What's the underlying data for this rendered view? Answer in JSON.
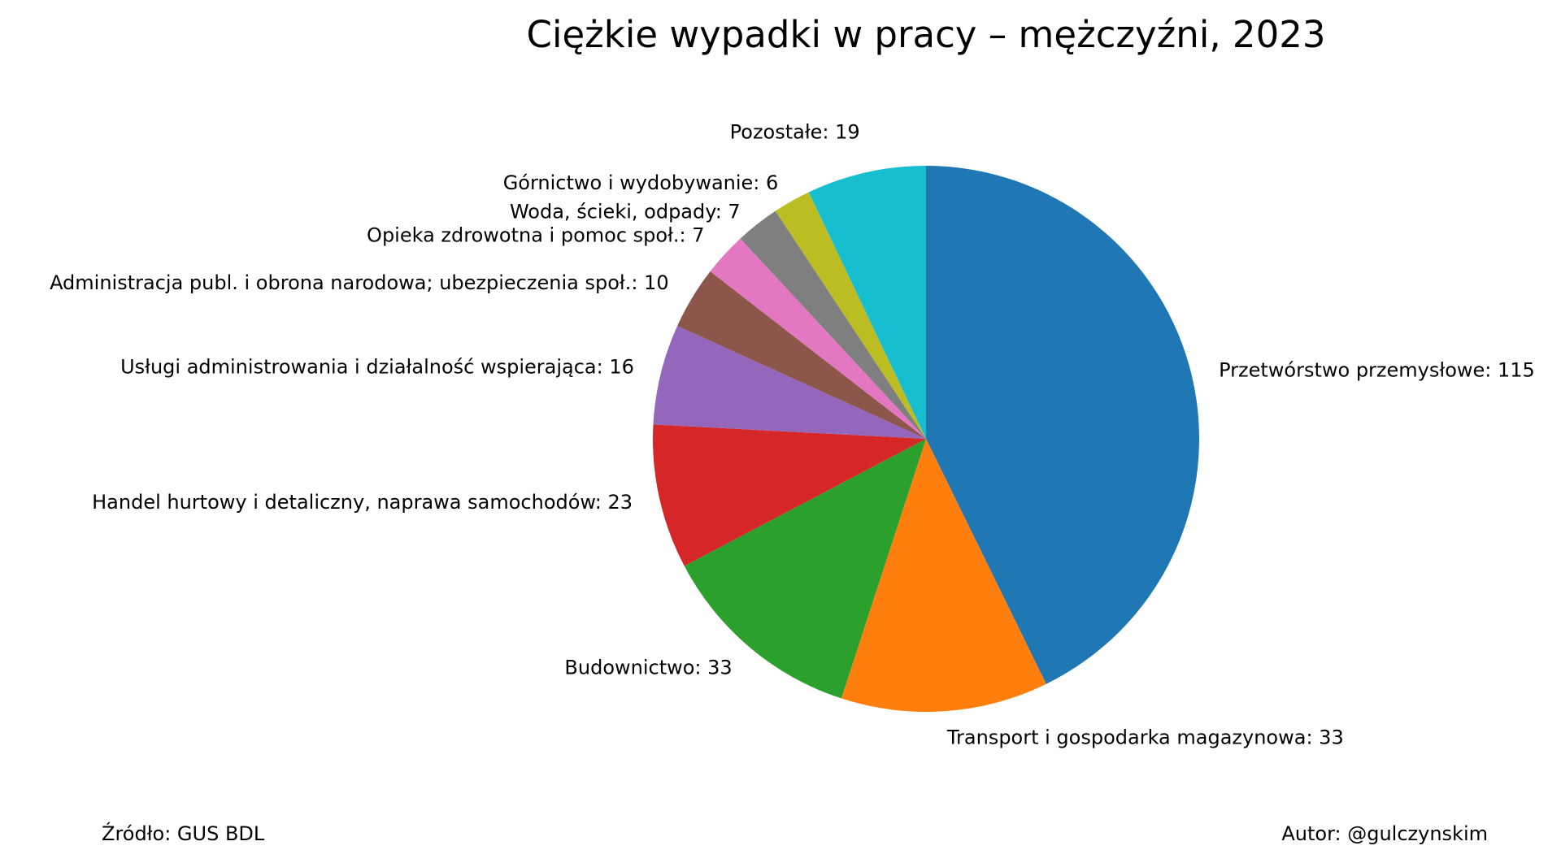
{
  "chart_data": {
    "type": "pie",
    "title": "Ciężkie wypadki w pracy – mężczyźni, 2023",
    "start_angle_deg": 90,
    "direction": "clockwise",
    "slices": [
      {
        "label": "Przetwórstwo przemysłowe",
        "value": 115,
        "color": "#1f77b4",
        "display": "Przetwórstwo przemysłowe: 115"
      },
      {
        "label": "Transport i gospodarka magazynowa",
        "value": 33,
        "color": "#ff7f0e",
        "display": "Transport i gospodarka magazynowa: 33"
      },
      {
        "label": "Budownictwo",
        "value": 33,
        "color": "#2ca02c",
        "display": "Budownictwo: 33"
      },
      {
        "label": "Handel hurtowy i detaliczny, naprawa samochodów",
        "value": 23,
        "color": "#d62728",
        "display": "Handel hurtowy i detaliczny, naprawa samochodów: 23"
      },
      {
        "label": "Usługi administrowania i działalność wspierająca",
        "value": 16,
        "color": "#9467bd",
        "display": "Usługi administrowania i działalność wspierająca: 16"
      },
      {
        "label": "Administracja publ. i obrona narodowa; ubezpieczenia społ.",
        "value": 10,
        "color": "#8c564b",
        "display": "Administracja publ. i obrona narodowa; ubezpieczenia społ.: 10"
      },
      {
        "label": "Opieka zdrowotna i pomoc społ.",
        "value": 7,
        "color": "#e377c2",
        "display": "Opieka zdrowotna i pomoc społ.: 7"
      },
      {
        "label": "Woda, ścieki, odpady",
        "value": 7,
        "color": "#7f7f7f",
        "display": "Woda, ścieki, odpady: 7"
      },
      {
        "label": "Górnictwo i wydobywanie",
        "value": 6,
        "color": "#bcbd22",
        "display": "Górnictwo i wydobywanie: 6"
      },
      {
        "label": "Pozostałe",
        "value": 19,
        "color": "#17becf",
        "display": "Pozostałe: 19"
      }
    ]
  },
  "footer": {
    "source": "Źródło: GUS BDL",
    "author": "Autor: @gulczynskim"
  }
}
